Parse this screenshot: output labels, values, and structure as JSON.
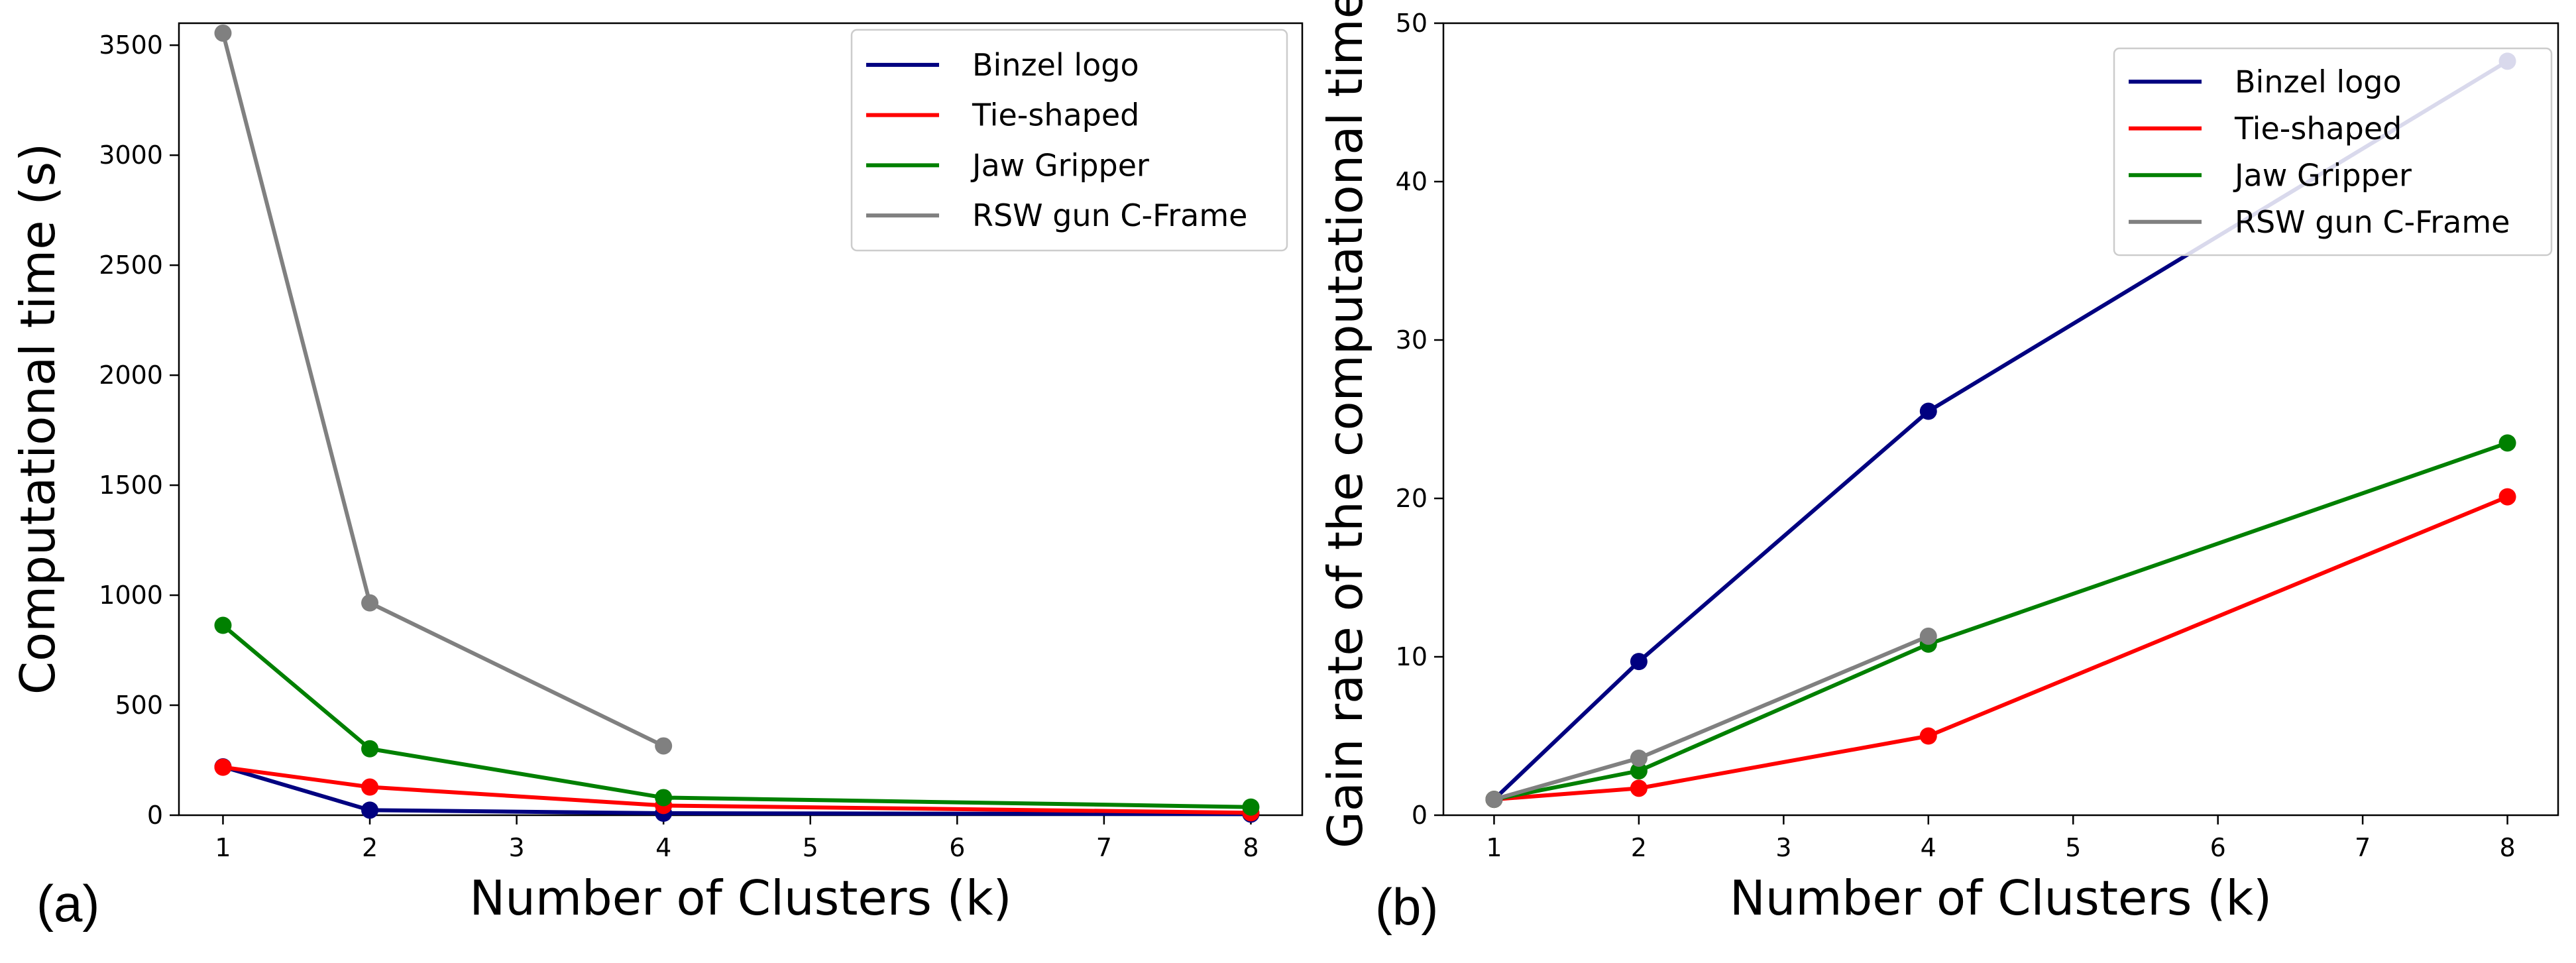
{
  "chart_data": [
    {
      "type": "line",
      "panel_label": "(a)",
      "xlabel": "Number of Clusters (k)",
      "ylabel": "Computational time (s)",
      "xlim": [
        0.7,
        8.35
      ],
      "ylim": [
        0,
        3600
      ],
      "xticks": [
        1,
        2,
        3,
        4,
        5,
        6,
        7,
        8
      ],
      "yticks": [
        0,
        500,
        1000,
        1500,
        2000,
        2500,
        3000,
        3500
      ],
      "legend_position": "top-right",
      "series": [
        {
          "name": "Binzel logo",
          "color": "#000080",
          "x": [
            1,
            2,
            4,
            8
          ],
          "y": [
            220,
            23,
            9,
            5
          ]
        },
        {
          "name": "Tie-shaped",
          "color": "#ff0000",
          "x": [
            1,
            2,
            4,
            8
          ],
          "y": [
            218,
            128,
            44,
            11
          ]
        },
        {
          "name": "Jaw Gripper",
          "color": "#008000",
          "x": [
            1,
            2,
            4,
            8
          ],
          "y": [
            863,
            302,
            80,
            37
          ]
        },
        {
          "name": "RSW gun C-Frame",
          "color": "#808080",
          "x": [
            1,
            2,
            4
          ],
          "y": [
            3555,
            965,
            315
          ]
        }
      ]
    },
    {
      "type": "line",
      "panel_label": "(b)",
      "xlabel": "Number of Clusters (k)",
      "ylabel": "Gain rate of the computational time",
      "xlim": [
        0.65,
        8.35
      ],
      "ylim": [
        0,
        50
      ],
      "xticks": [
        1,
        2,
        3,
        4,
        5,
        6,
        7,
        8
      ],
      "yticks": [
        0,
        10,
        20,
        30,
        40,
        50
      ],
      "legend_position": "top-right",
      "series": [
        {
          "name": "Binzel logo",
          "color": "#000080",
          "x": [
            1,
            2,
            4,
            8
          ],
          "y": [
            1,
            9.7,
            25.5,
            47.6
          ]
        },
        {
          "name": "Tie-shaped",
          "color": "#ff0000",
          "x": [
            1,
            2,
            4,
            8
          ],
          "y": [
            1,
            1.7,
            5.0,
            20.1
          ]
        },
        {
          "name": "Jaw Gripper",
          "color": "#008000",
          "x": [
            1,
            2,
            4,
            8
          ],
          "y": [
            1,
            2.8,
            10.8,
            23.5
          ]
        },
        {
          "name": "RSW gun C-Frame",
          "color": "#808080",
          "x": [
            1,
            2,
            4
          ],
          "y": [
            1,
            3.6,
            11.3
          ]
        }
      ]
    }
  ]
}
